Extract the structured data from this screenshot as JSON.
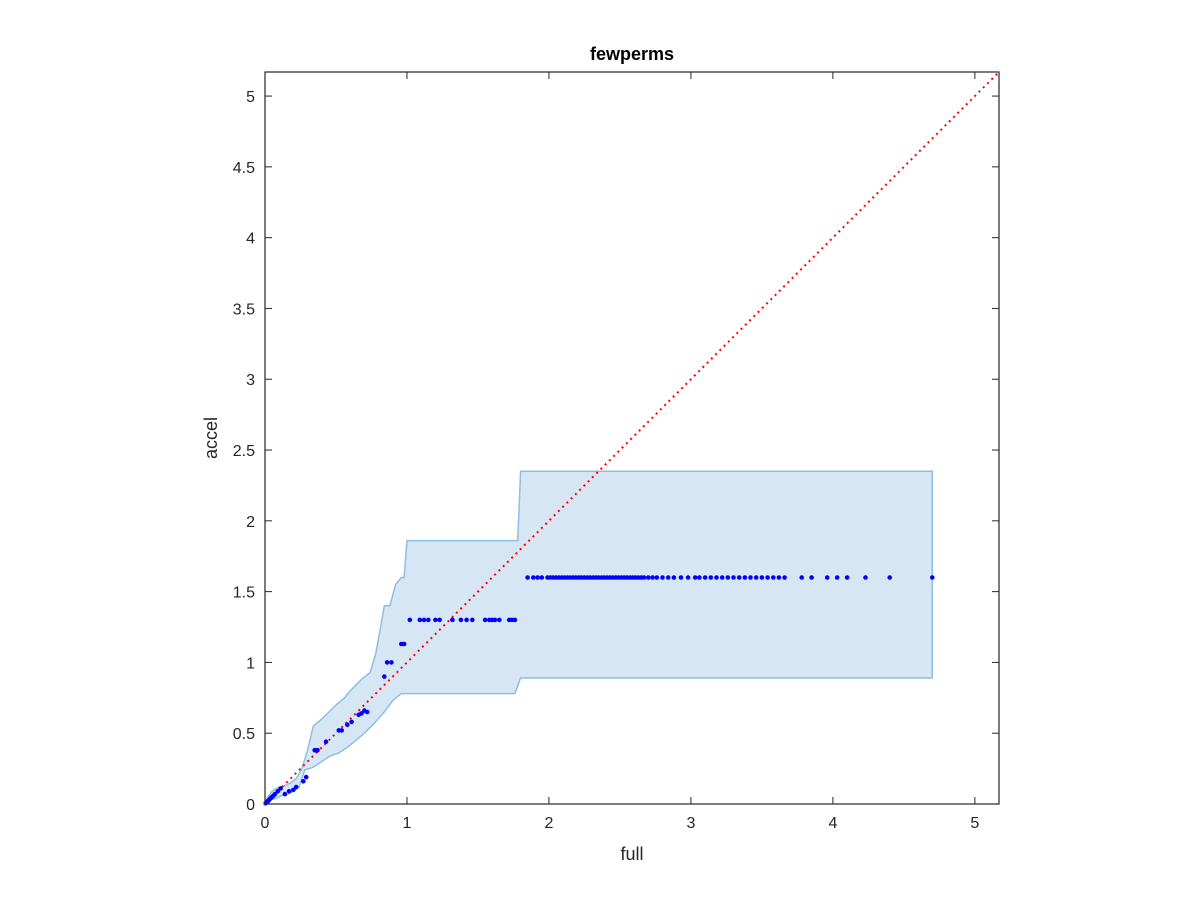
{
  "chart_data": {
    "type": "scatter",
    "title": "fewperms",
    "xlabel": "full",
    "ylabel": "accel",
    "xlim": [
      0,
      5.17
    ],
    "ylim": [
      0,
      5.17
    ],
    "grid": false,
    "box": true,
    "x_ticks": [
      0,
      1,
      2,
      3,
      4,
      5
    ],
    "x_tick_labels": [
      "0",
      "1",
      "2",
      "3",
      "4",
      "5"
    ],
    "y_ticks": [
      0,
      0.5,
      1,
      1.5,
      2,
      2.5,
      3,
      3.5,
      4,
      4.5,
      5
    ],
    "y_tick_labels": [
      "0",
      "0.5",
      "1",
      "1.5",
      "2",
      "2.5",
      "3",
      "3.5",
      "4",
      "4.5",
      "5"
    ],
    "colors": {
      "points": "#0000ff",
      "band_fill": "#d6e6f4",
      "band_edge": "#8dbfe0",
      "diagonal": "#ff0000",
      "axes": "#262626"
    },
    "diagonal": {
      "from": [
        0,
        0
      ],
      "to": [
        5.17,
        5.17
      ],
      "style": "dotted"
    },
    "band": {
      "upper": [
        [
          0,
          0
        ],
        [
          0.02,
          0.05
        ],
        [
          0.05,
          0.09
        ],
        [
          0.08,
          0.11
        ],
        [
          0.12,
          0.12
        ],
        [
          0.18,
          0.15
        ],
        [
          0.22,
          0.18
        ],
        [
          0.26,
          0.25
        ],
        [
          0.3,
          0.38
        ],
        [
          0.34,
          0.55
        ],
        [
          0.4,
          0.6
        ],
        [
          0.46,
          0.66
        ],
        [
          0.5,
          0.7
        ],
        [
          0.56,
          0.75
        ],
        [
          0.6,
          0.8
        ],
        [
          0.64,
          0.84
        ],
        [
          0.68,
          0.88
        ],
        [
          0.74,
          0.93
        ],
        [
          0.78,
          1.06
        ],
        [
          0.82,
          1.28
        ],
        [
          0.84,
          1.4
        ],
        [
          0.88,
          1.4
        ],
        [
          0.92,
          1.55
        ],
        [
          0.96,
          1.6
        ],
        [
          0.98,
          1.6
        ],
        [
          1.0,
          1.86
        ],
        [
          1.78,
          1.86
        ],
        [
          1.8,
          2.35
        ],
        [
          4.7,
          2.35
        ]
      ],
      "lower": [
        [
          4.7,
          0.89
        ],
        [
          1.8,
          0.89
        ],
        [
          1.76,
          0.78
        ],
        [
          1.0,
          0.78
        ],
        [
          0.96,
          0.78
        ],
        [
          0.9,
          0.73
        ],
        [
          0.84,
          0.65
        ],
        [
          0.76,
          0.56
        ],
        [
          0.7,
          0.5
        ],
        [
          0.64,
          0.45
        ],
        [
          0.58,
          0.4
        ],
        [
          0.52,
          0.36
        ],
        [
          0.46,
          0.34
        ],
        [
          0.4,
          0.3
        ],
        [
          0.34,
          0.26
        ],
        [
          0.28,
          0.24
        ],
        [
          0.24,
          0.12
        ],
        [
          0.2,
          0.09
        ],
        [
          0.16,
          0.07
        ],
        [
          0.12,
          0.06
        ],
        [
          0.08,
          0.04
        ],
        [
          0.04,
          0.03
        ],
        [
          0,
          0
        ]
      ]
    },
    "series": [
      {
        "x": [
          0.005,
          0.01,
          0.015,
          0.02,
          0.025,
          0.03,
          0.04,
          0.05,
          0.06,
          0.07,
          0.09,
          0.11,
          0.14,
          0.17,
          0.2,
          0.22,
          0.27,
          0.29,
          0.35,
          0.37,
          0.43,
          0.52,
          0.54,
          0.58,
          0.61,
          0.66,
          0.68,
          0.7,
          0.72,
          0.84,
          0.86,
          0.89,
          0.96,
          0.98,
          1.02,
          1.09,
          1.12,
          1.15,
          1.2,
          1.23,
          1.32,
          1.38,
          1.42,
          1.46,
          1.55,
          1.58,
          1.6,
          1.62,
          1.65,
          1.72,
          1.74,
          1.76,
          1.85,
          1.89,
          1.92,
          1.95,
          1.99,
          2.01,
          2.03,
          2.05,
          2.07,
          2.09,
          2.11,
          2.13,
          2.15,
          2.17,
          2.19,
          2.21,
          2.23,
          2.25,
          2.27,
          2.29,
          2.31,
          2.33,
          2.35,
          2.37,
          2.39,
          2.41,
          2.43,
          2.45,
          2.47,
          2.49,
          2.51,
          2.53,
          2.55,
          2.57,
          2.59,
          2.61,
          2.63,
          2.65,
          2.67,
          2.7,
          2.73,
          2.76,
          2.8,
          2.84,
          2.88,
          2.93,
          2.98,
          3.03,
          3.06,
          3.1,
          3.14,
          3.18,
          3.22,
          3.26,
          3.3,
          3.34,
          3.38,
          3.42,
          3.46,
          3.5,
          3.54,
          3.58,
          3.62,
          3.66,
          3.78,
          3.85,
          3.96,
          4.03,
          4.1,
          4.23,
          4.4,
          4.7
        ],
        "y": [
          0.005,
          0.01,
          0.015,
          0.02,
          0.025,
          0.03,
          0.04,
          0.05,
          0.06,
          0.07,
          0.09,
          0.11,
          0.07,
          0.09,
          0.1,
          0.12,
          0.16,
          0.19,
          0.38,
          0.38,
          0.44,
          0.52,
          0.52,
          0.56,
          0.58,
          0.63,
          0.64,
          0.66,
          0.65,
          0.9,
          1.0,
          1.0,
          1.13,
          1.13,
          1.3,
          1.3,
          1.3,
          1.3,
          1.3,
          1.3,
          1.3,
          1.3,
          1.3,
          1.3,
          1.3,
          1.3,
          1.3,
          1.3,
          1.3,
          1.3,
          1.3,
          1.3,
          1.6,
          1.6,
          1.6,
          1.6,
          1.6,
          1.6,
          1.6,
          1.6,
          1.6,
          1.6,
          1.6,
          1.6,
          1.6,
          1.6,
          1.6,
          1.6,
          1.6,
          1.6,
          1.6,
          1.6,
          1.6,
          1.6,
          1.6,
          1.6,
          1.6,
          1.6,
          1.6,
          1.6,
          1.6,
          1.6,
          1.6,
          1.6,
          1.6,
          1.6,
          1.6,
          1.6,
          1.6,
          1.6,
          1.6,
          1.6,
          1.6,
          1.6,
          1.6,
          1.6,
          1.6,
          1.6,
          1.6,
          1.6,
          1.6,
          1.6,
          1.6,
          1.6,
          1.6,
          1.6,
          1.6,
          1.6,
          1.6,
          1.6,
          1.6,
          1.6,
          1.6,
          1.6,
          1.6,
          1.6,
          1.6,
          1.6,
          1.6,
          1.6,
          1.6,
          1.6,
          1.6,
          1.6
        ]
      }
    ]
  }
}
